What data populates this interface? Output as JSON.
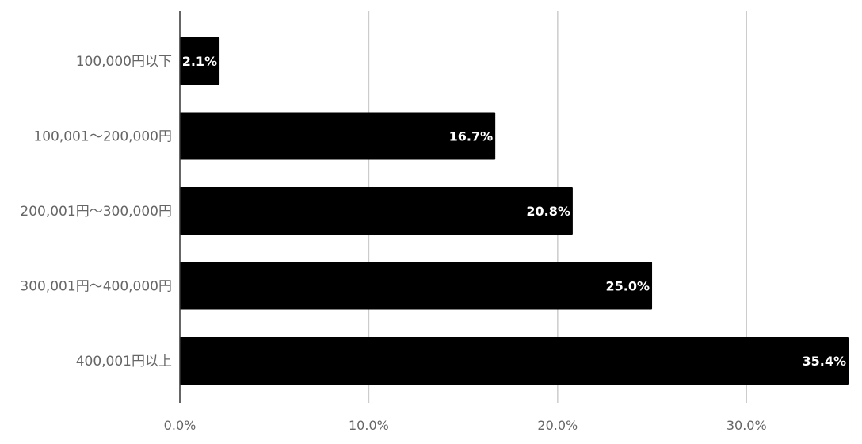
{
  "chart_data": {
    "type": "bar",
    "orientation": "horizontal",
    "categories": [
      "100,000円以下",
      "100,001〜200,000円",
      "200,001円〜300,000円",
      "300,001円〜400,000円",
      "400,001円以上"
    ],
    "values": [
      2.1,
      16.7,
      20.8,
      25.0,
      35.4
    ],
    "data_labels": [
      "2.1%",
      "16.7%",
      "20.8%",
      "25.0%",
      "35.4%"
    ],
    "x_ticks": [
      0,
      10,
      20,
      30
    ],
    "x_tick_labels": [
      "0.0%",
      "10.0%",
      "20.0%",
      "30.0%"
    ],
    "xlim": [
      0,
      35.4
    ],
    "grid": true,
    "legend": "none",
    "bar_color": "#000000",
    "grid_color": "#cccccc",
    "axis_color": "#333333",
    "label_color": "#666666",
    "data_label_color": "#ffffff"
  }
}
